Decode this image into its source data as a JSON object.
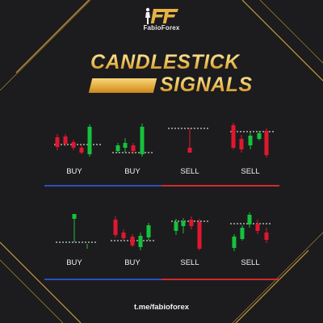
{
  "brand": {
    "name": "FabioForex"
  },
  "title": {
    "line1": "CANDLESTICK",
    "line2": "SIGNALS"
  },
  "colors": {
    "bullish": "#16c23c",
    "bearish": "#e0172f",
    "buy_line": "#2b4fbf",
    "sell_line": "#d22a2a",
    "gold": "#e7b246"
  },
  "rows": [
    {
      "patterns": [
        {
          "label": "BUY",
          "icon": "buy-pattern-1"
        },
        {
          "label": "BUY",
          "icon": "buy-pattern-2"
        },
        {
          "label": "SELL",
          "icon": "sell-pattern-1"
        },
        {
          "label": "SELL",
          "icon": "sell-pattern-2"
        }
      ]
    },
    {
      "patterns": [
        {
          "label": "BUY",
          "icon": "buy-pattern-3"
        },
        {
          "label": "BUY",
          "icon": "buy-pattern-4"
        },
        {
          "label": "SELL",
          "icon": "sell-pattern-3"
        },
        {
          "label": "SELL",
          "icon": "sell-pattern-4"
        }
      ]
    }
  ],
  "footer": {
    "link": "t.me/fabioforex"
  }
}
